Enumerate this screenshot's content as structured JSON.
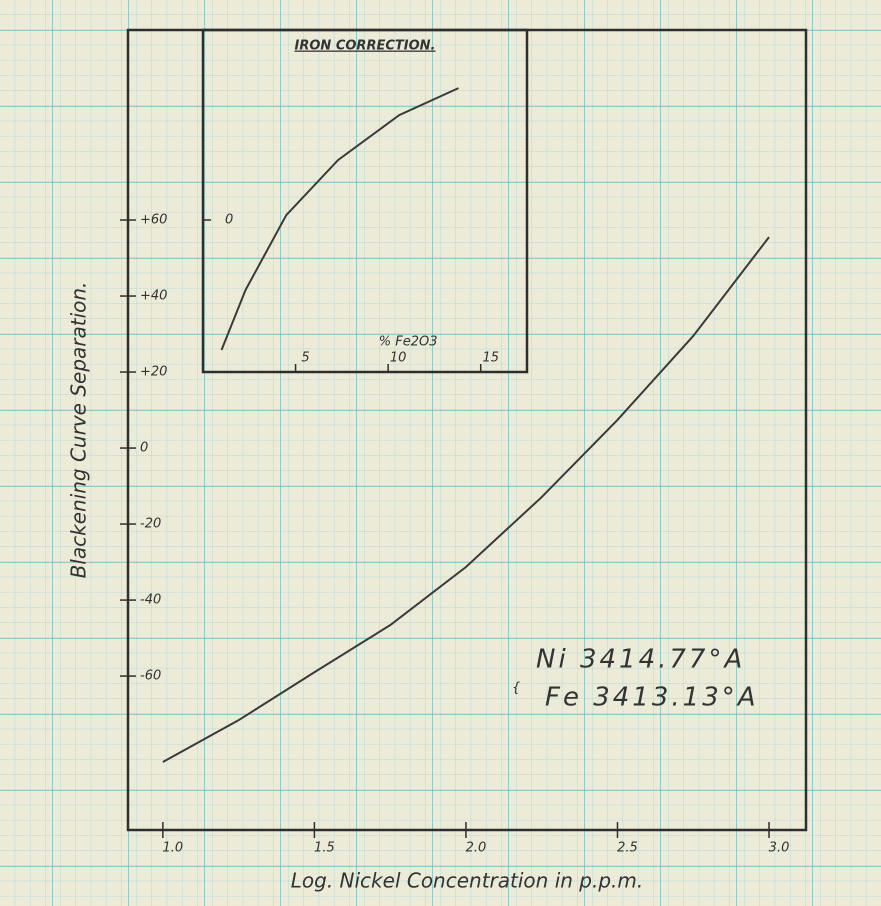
{
  "chart_data": [
    {
      "type": "line",
      "x_label": "Log. Nickel Concentration in p.p.m.",
      "y_label": "Blackening Curve Separation.",
      "x": [
        1.0,
        1.25,
        1.5,
        1.75,
        2.0,
        2.25,
        2.5,
        2.75,
        3.0
      ],
      "series": [
        {
          "color": "#3a3a3a",
          "values": [
            -82.6,
            -71.6,
            -59,
            -46.6,
            -31.3,
            -12.9,
            7.4,
            29.5,
            55.5
          ]
        }
      ],
      "xlim": [
        0.885,
        3.122
      ],
      "ylim": [
        -100.5,
        110
      ],
      "xticks": [
        {
          "value": 1.0,
          "label": "1.0"
        },
        1.5,
        {
          "value": 2.0,
          "label": "2.0"
        },
        2.5,
        {
          "value": 3.0,
          "label": "3.0"
        }
      ],
      "yticks": [
        {
          "value": 60,
          "label": "+60"
        },
        {
          "value": 40,
          "label": "+40"
        },
        {
          "value": 20,
          "label": "+20"
        },
        0,
        -20,
        -40,
        -60
      ],
      "annotations": [
        "Ni 3414.77°A",
        "Fe 3413.13°A"
      ]
    },
    {
      "type": "line",
      "title": "IRON CORRECTION.",
      "x_label": "% Fe2O3",
      "x": [
        1.0,
        2.3,
        4.5,
        7.3,
        10.6,
        13.8
      ],
      "series": [
        {
          "color": "#3a3a3a",
          "values": [
            -34.2,
            -18.4,
            1.3,
            15.8,
            27.6,
            34.7
          ]
        }
      ],
      "xlim": [
        0,
        17.5
      ],
      "ylim": [
        -40,
        50
      ],
      "xticks": [
        5,
        10,
        15
      ],
      "yticks": [
        0
      ]
    }
  ]
}
